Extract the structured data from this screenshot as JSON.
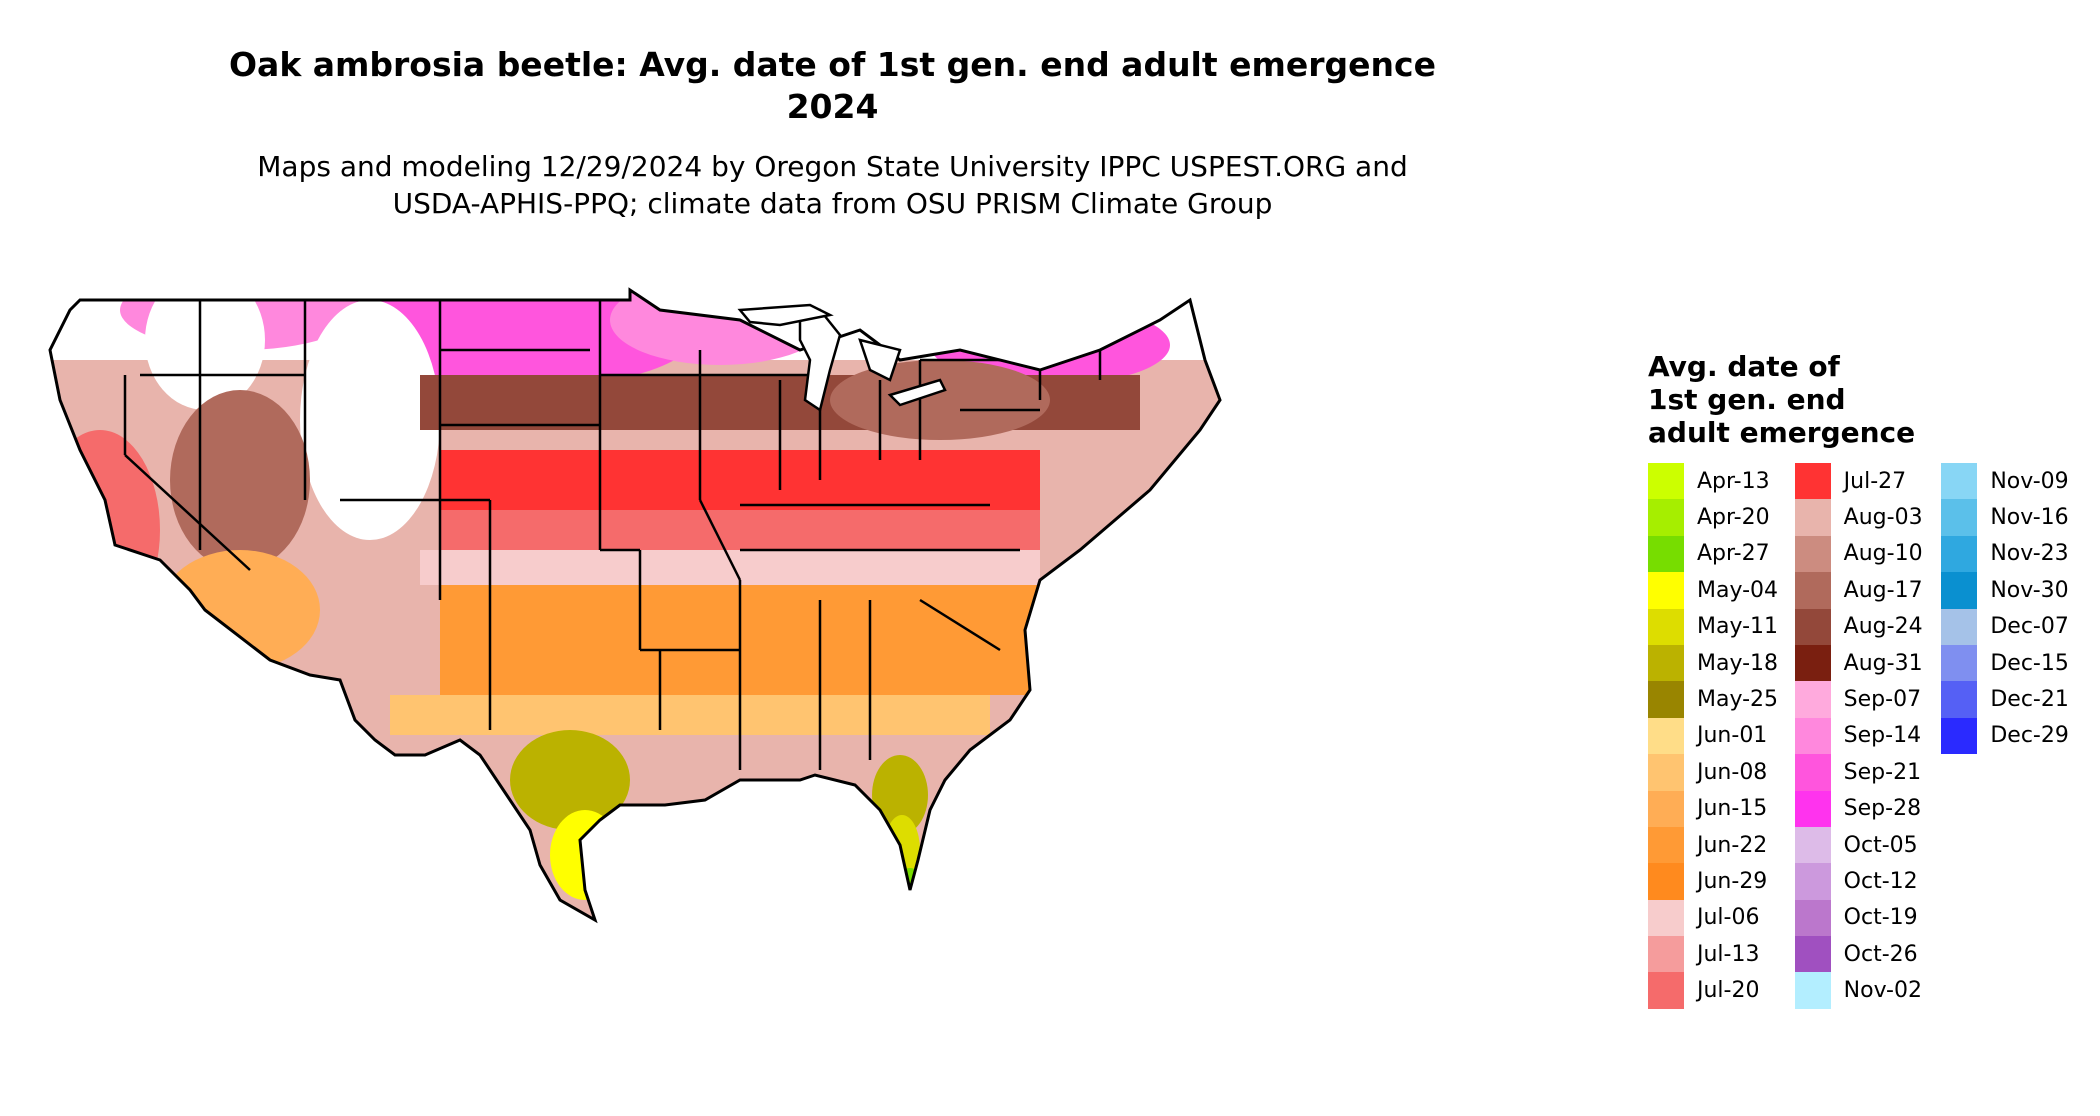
{
  "title_line1": "Oak ambrosia beetle: Avg. date of 1st gen. end adult emergence",
  "title_line2": "2024",
  "subtitle_line1": "Maps and modeling 12/29/2024 by Oregon State University IPPC USPEST.ORG and",
  "subtitle_line2": "USDA-APHIS-PPQ; climate data from OSU PRISM Climate Group",
  "legend": {
    "title_line1": "Avg. date of",
    "title_line2": "1st gen. end",
    "title_line3": "adult emergence",
    "columns": [
      [
        {
          "label": "Apr-13",
          "color": "#ccff00"
        },
        {
          "label": "Apr-20",
          "color": "#a6ee00"
        },
        {
          "label": "Apr-27",
          "color": "#77dd00"
        },
        {
          "label": "May-04",
          "color": "#ffff00"
        },
        {
          "label": "May-11",
          "color": "#dddd00"
        },
        {
          "label": "May-18",
          "color": "#bbb200"
        },
        {
          "label": "May-25",
          "color": "#998500"
        },
        {
          "label": "Jun-01",
          "color": "#ffdd88"
        },
        {
          "label": "Jun-08",
          "color": "#ffc470"
        },
        {
          "label": "Jun-15",
          "color": "#ffad55"
        },
        {
          "label": "Jun-22",
          "color": "#ff9a35"
        },
        {
          "label": "Jun-29",
          "color": "#ff8a1e"
        },
        {
          "label": "Jul-06",
          "color": "#f7cccc"
        },
        {
          "label": "Jul-13",
          "color": "#f59c9c"
        },
        {
          "label": "Jul-20",
          "color": "#f56b6b"
        }
      ],
      [
        {
          "label": "Jul-27",
          "color": "#ff3333"
        },
        {
          "label": "Aug-03",
          "color": "#e8b4ac"
        },
        {
          "label": "Aug-10",
          "color": "#cc8c80"
        },
        {
          "label": "Aug-17",
          "color": "#b06a5c"
        },
        {
          "label": "Aug-24",
          "color": "#93483a"
        },
        {
          "label": "Aug-31",
          "color": "#7a1f10"
        },
        {
          "label": "Sep-07",
          "color": "#ffaadd"
        },
        {
          "label": "Sep-14",
          "color": "#ff88dd"
        },
        {
          "label": "Sep-21",
          "color": "#ff55dd"
        },
        {
          "label": "Sep-28",
          "color": "#ff33ee"
        },
        {
          "label": "Oct-05",
          "color": "#ddbbe8"
        },
        {
          "label": "Oct-12",
          "color": "#cc99dd"
        },
        {
          "label": "Oct-19",
          "color": "#bb77cc"
        },
        {
          "label": "Oct-26",
          "color": "#a050c0"
        },
        {
          "label": "Nov-02",
          "color": "#b3eeff"
        }
      ],
      [
        {
          "label": "Nov-09",
          "color": "#88d6f5"
        },
        {
          "label": "Nov-16",
          "color": "#5bc0ea"
        },
        {
          "label": "Nov-23",
          "color": "#2fa8e0"
        },
        {
          "label": "Nov-30",
          "color": "#0a90d0"
        },
        {
          "label": "Dec-07",
          "color": "#a5c2e8"
        },
        {
          "label": "Dec-15",
          "color": "#7f8ff0"
        },
        {
          "label": "Dec-21",
          "color": "#5560f5"
        },
        {
          "label": "Dec-29",
          "color": "#2a2aff"
        }
      ]
    ]
  }
}
